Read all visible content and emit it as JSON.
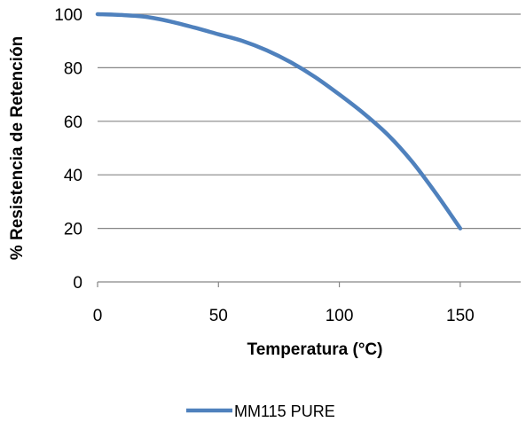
{
  "chart_data": {
    "type": "line",
    "title": "",
    "xlabel": "Temperatura (°C)",
    "ylabel": "% Resistencia de Retención",
    "xlim": [
      0,
      175
    ],
    "ylim": [
      0,
      100
    ],
    "x_ticks": [
      0,
      50,
      100,
      150
    ],
    "y_ticks": [
      0,
      20,
      40,
      60,
      80,
      100
    ],
    "grid": "horizontal",
    "legend_position": "bottom",
    "series": [
      {
        "name": "MM115 PURE",
        "color": "#4F81BD",
        "x": [
          0,
          10,
          20,
          30,
          40,
          50,
          60,
          70,
          80,
          90,
          100,
          110,
          120,
          130,
          140,
          150
        ],
        "y": [
          100,
          99.7,
          99,
          97.3,
          95,
          92.5,
          90,
          86.5,
          82,
          76.5,
          70,
          63,
          55,
          45,
          33,
          20
        ]
      }
    ]
  }
}
